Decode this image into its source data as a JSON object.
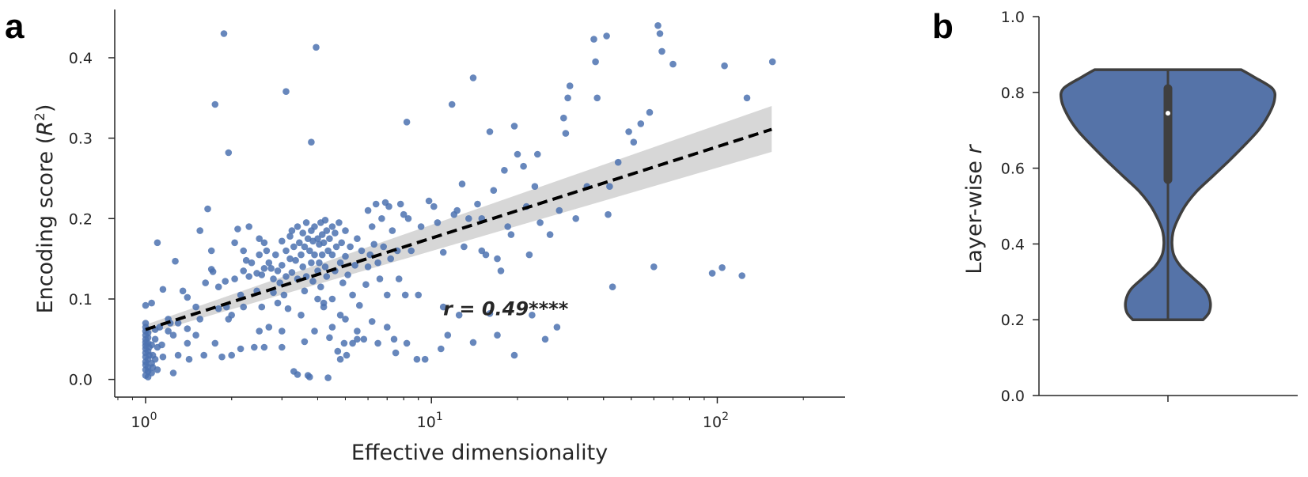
{
  "panel_labels": {
    "a": "a",
    "b": "b"
  },
  "colors": {
    "points": "#4c72b0",
    "fit_line": "#000000",
    "ci_band": "#d3d3d3",
    "violin": "#5573a8",
    "violin_edge": "#3f3f3f",
    "box": "#3f3f3f",
    "median": "#ffffff",
    "axis": "#262626"
  },
  "chart_data": [
    {
      "type": "scatter",
      "xlabel": "Effective dimensionality",
      "ylabel": "Encoding score (",
      "ylabel_sym": "R",
      "ylabel_sup": "2",
      "ylabel_close": ")",
      "x_scale": "log",
      "xlim": [
        0.78,
        280
      ],
      "ylim": [
        -0.022,
        0.46
      ],
      "x_ticks": [
        {
          "value": 1,
          "base": "10",
          "exp": "0"
        },
        {
          "value": 10,
          "base": "10",
          "exp": "1"
        },
        {
          "value": 100,
          "base": "10",
          "exp": "2"
        }
      ],
      "y_ticks": [
        {
          "value": 0.0,
          "label": "0.0"
        },
        {
          "value": 0.1,
          "label": "0.1"
        },
        {
          "value": 0.2,
          "label": "0.2"
        },
        {
          "value": 0.3,
          "label": "0.3"
        },
        {
          "value": 0.4,
          "label": "0.4"
        }
      ],
      "annotation": {
        "text": "r = 0.49****",
        "x": 11,
        "y": 0.08
      },
      "regression": {
        "x": [
          1,
          155
        ],
        "y": [
          0.062,
          0.311
        ],
        "ci_low": [
          0.056,
          0.283
        ],
        "ci_high": [
          0.068,
          0.34
        ],
        "style": "dashed"
      },
      "points": [
        [
          1.0,
          0.005
        ],
        [
          1.0,
          0.012
        ],
        [
          1.0,
          0.018
        ],
        [
          1.0,
          0.022
        ],
        [
          1.0,
          0.028
        ],
        [
          1.0,
          0.033
        ],
        [
          1.0,
          0.038
        ],
        [
          1.0,
          0.042
        ],
        [
          1.0,
          0.046
        ],
        [
          1.0,
          0.05
        ],
        [
          1.0,
          0.055
        ],
        [
          1.0,
          0.06
        ],
        [
          1.0,
          0.065
        ],
        [
          1.0,
          0.07
        ],
        [
          1.0,
          0.092
        ],
        [
          1.02,
          0.003
        ],
        [
          1.02,
          0.015
        ],
        [
          1.02,
          0.025
        ],
        [
          1.02,
          0.035
        ],
        [
          1.02,
          0.045
        ],
        [
          1.02,
          0.052
        ],
        [
          1.02,
          0.058
        ],
        [
          1.02,
          0.01
        ],
        [
          1.03,
          0.04
        ],
        [
          1.03,
          0.03
        ],
        [
          1.05,
          0.095
        ],
        [
          1.05,
          0.043
        ],
        [
          1.05,
          0.02
        ],
        [
          1.05,
          0.008
        ],
        [
          1.06,
          0.015
        ],
        [
          1.06,
          0.03
        ],
        [
          1.08,
          0.062
        ],
        [
          1.08,
          0.05
        ],
        [
          1.08,
          0.025
        ],
        [
          1.1,
          0.17
        ],
        [
          1.1,
          0.04
        ],
        [
          1.1,
          0.012
        ],
        [
          1.12,
          0.065
        ],
        [
          1.14,
          0.043
        ],
        [
          1.15,
          0.112
        ],
        [
          1.15,
          0.028
        ],
        [
          1.2,
          0.075
        ],
        [
          1.2,
          0.06
        ],
        [
          1.22,
          0.07
        ],
        [
          1.25,
          0.008
        ],
        [
          1.27,
          0.147
        ],
        [
          1.3,
          0.07
        ],
        [
          1.3,
          0.03
        ],
        [
          1.35,
          0.11
        ],
        [
          1.4,
          0.102
        ],
        [
          1.4,
          0.063
        ],
        [
          1.42,
          0.025
        ],
        [
          1.5,
          0.09
        ],
        [
          1.5,
          0.055
        ],
        [
          1.55,
          0.185
        ],
        [
          1.55,
          0.075
        ],
        [
          1.6,
          0.03
        ],
        [
          1.62,
          0.12
        ],
        [
          1.65,
          0.212
        ],
        [
          1.7,
          0.16
        ],
        [
          1.7,
          0.137
        ],
        [
          1.72,
          0.134
        ],
        [
          1.75,
          0.342
        ],
        [
          1.75,
          0.045
        ],
        [
          1.8,
          0.115
        ],
        [
          1.8,
          0.088
        ],
        [
          1.88,
          0.43
        ],
        [
          1.9,
          0.122
        ],
        [
          1.92,
          0.09
        ],
        [
          1.95,
          0.282
        ],
        [
          1.95,
          0.075
        ],
        [
          2.0,
          0.08
        ],
        [
          2.0,
          0.03
        ],
        [
          2.05,
          0.17
        ],
        [
          2.05,
          0.125
        ],
        [
          2.1,
          0.187
        ],
        [
          2.15,
          0.105
        ],
        [
          2.15,
          0.038
        ],
        [
          2.2,
          0.16
        ],
        [
          2.2,
          0.135
        ],
        [
          2.25,
          0.148
        ],
        [
          2.3,
          0.19
        ],
        [
          2.3,
          0.128
        ],
        [
          2.35,
          0.145
        ],
        [
          2.4,
          0.04
        ],
        [
          2.45,
          0.132
        ],
        [
          2.45,
          0.11
        ],
        [
          2.5,
          0.175
        ],
        [
          2.5,
          0.155
        ],
        [
          2.55,
          0.13
        ],
        [
          2.55,
          0.09
        ],
        [
          2.6,
          0.17
        ],
        [
          2.6,
          0.138
        ],
        [
          2.65,
          0.16
        ],
        [
          2.7,
          0.145
        ],
        [
          2.7,
          0.065
        ],
        [
          2.75,
          0.138
        ],
        [
          2.8,
          0.125
        ],
        [
          2.8,
          0.108
        ],
        [
          2.85,
          0.155
        ],
        [
          2.9,
          0.135
        ],
        [
          2.9,
          0.095
        ],
        [
          2.95,
          0.12
        ],
        [
          3.0,
          0.172
        ],
        [
          3.0,
          0.142
        ],
        [
          3.0,
          0.04
        ],
        [
          3.05,
          0.105
        ],
        [
          3.1,
          0.358
        ],
        [
          3.1,
          0.16
        ],
        [
          3.1,
          0.128
        ],
        [
          3.15,
          0.088
        ],
        [
          3.2,
          0.178
        ],
        [
          3.2,
          0.15
        ],
        [
          3.25,
          0.185
        ],
        [
          3.25,
          0.133
        ],
        [
          3.3,
          0.165
        ],
        [
          3.3,
          0.01
        ],
        [
          3.35,
          0.148
        ],
        [
          3.4,
          0.19
        ],
        [
          3.4,
          0.125
        ],
        [
          3.4,
          0.006
        ],
        [
          3.45,
          0.17
        ],
        [
          3.5,
          0.155
        ],
        [
          3.5,
          0.08
        ],
        [
          3.55,
          0.182
        ],
        [
          3.55,
          0.14
        ],
        [
          3.6,
          0.165
        ],
        [
          3.6,
          0.11
        ],
        [
          3.65,
          0.195
        ],
        [
          3.65,
          0.128
        ],
        [
          3.7,
          0.175
        ],
        [
          3.7,
          0.005
        ],
        [
          3.75,
          0.16
        ],
        [
          3.75,
          0.003
        ],
        [
          3.8,
          0.295
        ],
        [
          3.8,
          0.185
        ],
        [
          3.8,
          0.145
        ],
        [
          3.85,
          0.172
        ],
        [
          3.85,
          0.122
        ],
        [
          3.9,
          0.19
        ],
        [
          3.9,
          0.155
        ],
        [
          3.9,
          0.06
        ],
        [
          3.95,
          0.413
        ],
        [
          4.0,
          0.175
        ],
        [
          4.0,
          0.135
        ],
        [
          4.0,
          0.1
        ],
        [
          4.05,
          0.168
        ],
        [
          4.05,
          0.145
        ],
        [
          4.1,
          0.195
        ],
        [
          4.1,
          0.115
        ],
        [
          4.15,
          0.18
        ],
        [
          4.15,
          0.155
        ],
        [
          4.2,
          0.17
        ],
        [
          4.2,
          0.09
        ],
        [
          4.25,
          0.198
        ],
        [
          4.25,
          0.14
        ],
        [
          4.3,
          0.185
        ],
        [
          4.3,
          0.128
        ],
        [
          4.35,
          0.16
        ],
        [
          4.35,
          0.002
        ],
        [
          4.4,
          0.175
        ],
        [
          4.4,
          0.052
        ],
        [
          4.5,
          0.19
        ],
        [
          4.5,
          0.155
        ],
        [
          4.5,
          0.1
        ],
        [
          4.6,
          0.182
        ],
        [
          4.6,
          0.135
        ],
        [
          4.65,
          0.165
        ],
        [
          4.7,
          0.035
        ],
        [
          4.75,
          0.195
        ],
        [
          4.8,
          0.145
        ],
        [
          4.8,
          0.025
        ],
        [
          4.85,
          0.17
        ],
        [
          4.9,
          0.12
        ],
        [
          4.95,
          0.045
        ],
        [
          5.0,
          0.185
        ],
        [
          5.0,
          0.153
        ],
        [
          5.0,
          0.075
        ],
        [
          5.05,
          0.03
        ],
        [
          5.1,
          0.13
        ],
        [
          5.2,
          0.165
        ],
        [
          5.3,
          0.105
        ],
        [
          5.3,
          0.045
        ],
        [
          5.4,
          0.142
        ],
        [
          5.5,
          0.175
        ],
        [
          5.5,
          0.05
        ],
        [
          5.6,
          0.092
        ],
        [
          5.7,
          0.16
        ],
        [
          5.8,
          0.05
        ],
        [
          5.9,
          0.118
        ],
        [
          6.0,
          0.21
        ],
        [
          6.0,
          0.14
        ],
        [
          6.1,
          0.155
        ],
        [
          6.2,
          0.19
        ],
        [
          6.3,
          0.168
        ],
        [
          6.4,
          0.218
        ],
        [
          6.5,
          0.145
        ],
        [
          6.6,
          0.125
        ],
        [
          6.7,
          0.2
        ],
        [
          6.8,
          0.165
        ],
        [
          6.9,
          0.22
        ],
        [
          7.0,
          0.105
        ],
        [
          7.1,
          0.215
        ],
        [
          7.2,
          0.15
        ],
        [
          7.3,
          0.185
        ],
        [
          7.4,
          0.05
        ],
        [
          7.5,
          0.033
        ],
        [
          7.6,
          0.16
        ],
        [
          7.7,
          0.125
        ],
        [
          7.8,
          0.218
        ],
        [
          8.0,
          0.205
        ],
        [
          8.1,
          0.105
        ],
        [
          8.2,
          0.32
        ],
        [
          8.3,
          0.2
        ],
        [
          8.5,
          0.16
        ],
        [
          8.9,
          0.025
        ],
        [
          9.2,
          0.19
        ],
        [
          9.5,
          0.025
        ],
        [
          9.8,
          0.222
        ],
        [
          10.2,
          0.215
        ],
        [
          10.5,
          0.195
        ],
        [
          11.0,
          0.09
        ],
        [
          11.4,
          0.055
        ],
        [
          11.8,
          0.342
        ],
        [
          12.0,
          0.205
        ],
        [
          12.3,
          0.21
        ],
        [
          12.8,
          0.243
        ],
        [
          13.5,
          0.2
        ],
        [
          14.0,
          0.375
        ],
        [
          14.5,
          0.218
        ],
        [
          15.0,
          0.16
        ],
        [
          15.5,
          0.155
        ],
        [
          16.0,
          0.308
        ],
        [
          16.5,
          0.235
        ],
        [
          17.0,
          0.15
        ],
        [
          17.5,
          0.135
        ],
        [
          18.0,
          0.26
        ],
        [
          18.5,
          0.19
        ],
        [
          19.0,
          0.18
        ],
        [
          19.5,
          0.315
        ],
        [
          20.0,
          0.28
        ],
        [
          21.0,
          0.265
        ],
        [
          21.5,
          0.215
        ],
        [
          22.0,
          0.155
        ],
        [
          23.0,
          0.24
        ],
        [
          23.5,
          0.28
        ],
        [
          24.0,
          0.195
        ],
        [
          25.0,
          0.05
        ],
        [
          26.0,
          0.18
        ],
        [
          27.5,
          0.065
        ],
        [
          28.0,
          0.21
        ],
        [
          29.0,
          0.325
        ],
        [
          29.5,
          0.306
        ],
        [
          30.0,
          0.35
        ],
        [
          30.5,
          0.365
        ],
        [
          32.0,
          0.2
        ],
        [
          35.0,
          0.24
        ],
        [
          37.0,
          0.423
        ],
        [
          37.5,
          0.395
        ],
        [
          38.0,
          0.35
        ],
        [
          41.0,
          0.427
        ],
        [
          41.5,
          0.205
        ],
        [
          42.0,
          0.24
        ],
        [
          43.0,
          0.115
        ],
        [
          45.0,
          0.27
        ],
        [
          49.0,
          0.308
        ],
        [
          51.0,
          0.295
        ],
        [
          54.0,
          0.318
        ],
        [
          58.0,
          0.332
        ],
        [
          60.0,
          0.14
        ],
        [
          62.0,
          0.44
        ],
        [
          63.0,
          0.43
        ],
        [
          64.0,
          0.408
        ],
        [
          70.0,
          0.392
        ],
        [
          96.0,
          0.132
        ],
        [
          104.0,
          0.139
        ],
        [
          106.0,
          0.39
        ],
        [
          122.0,
          0.129
        ],
        [
          127.0,
          0.35
        ],
        [
          156.0,
          0.395
        ],
        [
          8.2,
          0.045
        ],
        [
          6.5,
          0.045
        ],
        [
          9.0,
          0.105
        ],
        [
          10.8,
          0.038
        ],
        [
          12.5,
          0.08
        ],
        [
          16.0,
          0.082
        ],
        [
          14.0,
          0.046
        ],
        [
          17.0,
          0.055
        ],
        [
          19.5,
          0.03
        ],
        [
          22.5,
          0.08
        ],
        [
          11.0,
          0.158
        ],
        [
          13.0,
          0.165
        ],
        [
          15.0,
          0.2
        ],
        [
          5.5,
          0.06
        ],
        [
          6.2,
          0.072
        ],
        [
          7.0,
          0.065
        ],
        [
          3.0,
          0.06
        ],
        [
          2.5,
          0.06
        ],
        [
          2.2,
          0.09
        ],
        [
          4.5,
          0.065
        ],
        [
          3.6,
          0.047
        ],
        [
          1.25,
          0.055
        ],
        [
          1.4,
          0.045
        ],
        [
          1.85,
          0.028
        ],
        [
          2.6,
          0.04
        ],
        [
          4.2,
          0.095
        ],
        [
          4.8,
          0.08
        ]
      ]
    },
    {
      "type": "violin",
      "ylabel": "Layer-wise ",
      "ylabel_sym": "r",
      "ylim": [
        0.0,
        1.0
      ],
      "y_ticks": [
        {
          "value": 0.0,
          "label": "0.0"
        },
        {
          "value": 0.2,
          "label": "0.2"
        },
        {
          "value": 0.4,
          "label": "0.4"
        },
        {
          "value": 0.6,
          "label": "0.6"
        },
        {
          "value": 0.8,
          "label": "0.8"
        },
        {
          "value": 1.0,
          "label": "1.0"
        }
      ],
      "x_ticks": [
        ""
      ],
      "min": 0.2,
      "max": 0.86,
      "q1": 0.57,
      "q3": 0.81,
      "median": 0.745,
      "density": [
        [
          0.2,
          0.35
        ],
        [
          0.22,
          0.41
        ],
        [
          0.25,
          0.42
        ],
        [
          0.28,
          0.37
        ],
        [
          0.31,
          0.25
        ],
        [
          0.34,
          0.13
        ],
        [
          0.37,
          0.06
        ],
        [
          0.4,
          0.04
        ],
        [
          0.43,
          0.05
        ],
        [
          0.46,
          0.09
        ],
        [
          0.5,
          0.17
        ],
        [
          0.54,
          0.29
        ],
        [
          0.58,
          0.45
        ],
        [
          0.62,
          0.61
        ],
        [
          0.66,
          0.76
        ],
        [
          0.7,
          0.9
        ],
        [
          0.74,
          1.0
        ],
        [
          0.78,
          1.06
        ],
        [
          0.81,
          1.04
        ],
        [
          0.84,
          0.86
        ],
        [
          0.86,
          0.73
        ]
      ]
    }
  ]
}
